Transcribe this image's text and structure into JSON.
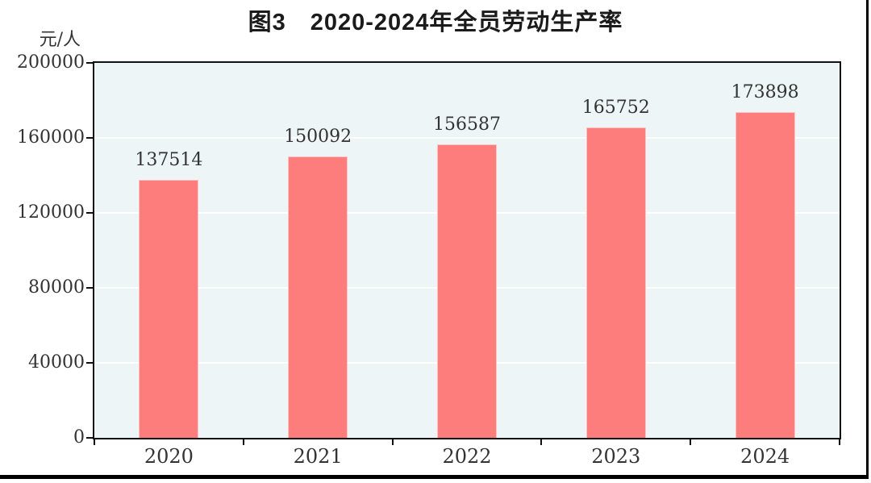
{
  "figure": {
    "title": "图3　2020-2024年全员劳动生产率",
    "y_unit_label": "元/人"
  },
  "chart_data": {
    "type": "bar",
    "title": "图3　2020-2024年全员劳动生产率",
    "categories": [
      "2020",
      "2021",
      "2022",
      "2023",
      "2024"
    ],
    "values": [
      137514,
      150092,
      156587,
      165752,
      173898
    ],
    "xlabel": "",
    "ylabel": "元/人",
    "ylim": [
      0,
      200000
    ],
    "yticks": [
      0,
      40000,
      80000,
      120000,
      160000,
      200000
    ],
    "grid": true,
    "legend_position": "none",
    "colors": {
      "bar": "#fd7c7c",
      "plot_background": "#eef5f7",
      "gridline": "#ffffff",
      "axis": "#111111",
      "text": "#333333"
    }
  }
}
